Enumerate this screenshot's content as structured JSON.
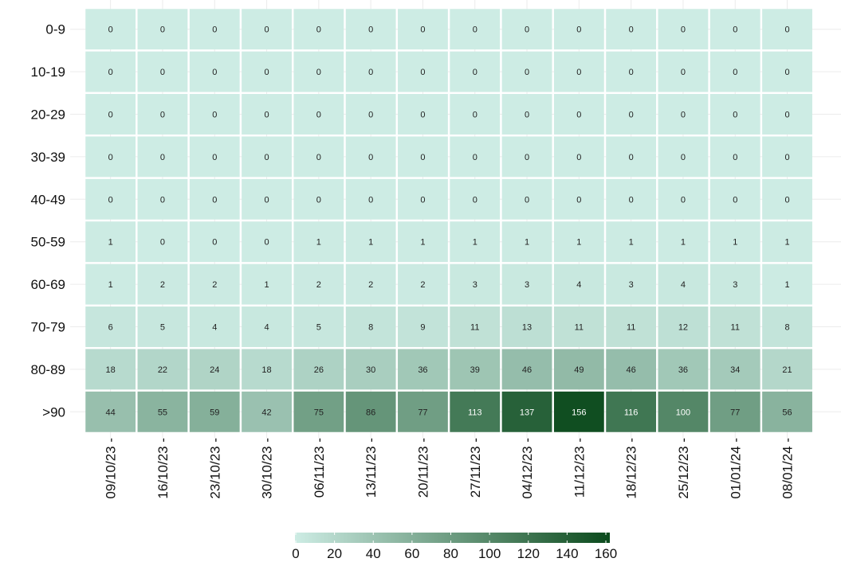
{
  "chart_data": {
    "type": "heatmap",
    "title": "",
    "xlabel": "",
    "ylabel": "",
    "x": [
      "09/10/23",
      "16/10/23",
      "23/10/23",
      "30/10/23",
      "06/11/23",
      "13/11/23",
      "20/11/23",
      "27/11/23",
      "04/12/23",
      "11/12/23",
      "18/12/23",
      "25/12/23",
      "01/01/24",
      "08/01/24"
    ],
    "x_label_suffix": " -",
    "y": [
      "0-9",
      "10-19",
      "20-29",
      "30-39",
      "40-49",
      "50-59",
      "60-69",
      "70-79",
      "80-89",
      ">90"
    ],
    "values": [
      [
        0,
        0,
        0,
        0,
        0,
        0,
        0,
        0,
        0,
        0,
        0,
        0,
        0,
        0
      ],
      [
        0,
        0,
        0,
        0,
        0,
        0,
        0,
        0,
        0,
        0,
        0,
        0,
        0,
        0
      ],
      [
        0,
        0,
        0,
        0,
        0,
        0,
        0,
        0,
        0,
        0,
        0,
        0,
        0,
        0
      ],
      [
        0,
        0,
        0,
        0,
        0,
        0,
        0,
        0,
        0,
        0,
        0,
        0,
        0,
        0
      ],
      [
        0,
        0,
        0,
        0,
        0,
        0,
        0,
        0,
        0,
        0,
        0,
        0,
        0,
        0
      ],
      [
        1,
        0,
        0,
        0,
        1,
        1,
        1,
        1,
        1,
        1,
        1,
        1,
        1,
        1
      ],
      [
        1,
        2,
        2,
        1,
        2,
        2,
        2,
        3,
        3,
        4,
        3,
        4,
        3,
        1
      ],
      [
        6,
        5,
        4,
        4,
        5,
        8,
        9,
        11,
        13,
        11,
        11,
        12,
        11,
        8
      ],
      [
        18,
        22,
        24,
        18,
        26,
        30,
        36,
        39,
        46,
        49,
        46,
        36,
        34,
        21
      ],
      [
        44,
        55,
        59,
        42,
        75,
        86,
        77,
        113,
        137,
        156,
        116,
        100,
        77,
        56
      ]
    ],
    "color_scale": {
      "min": 0,
      "max": 160,
      "low_color": "#cdece4",
      "high_color": "#0b4a1c",
      "ticks": [
        0,
        20,
        40,
        60,
        80,
        100,
        120,
        140,
        160
      ]
    },
    "legend_position": "bottom",
    "grid": true
  }
}
